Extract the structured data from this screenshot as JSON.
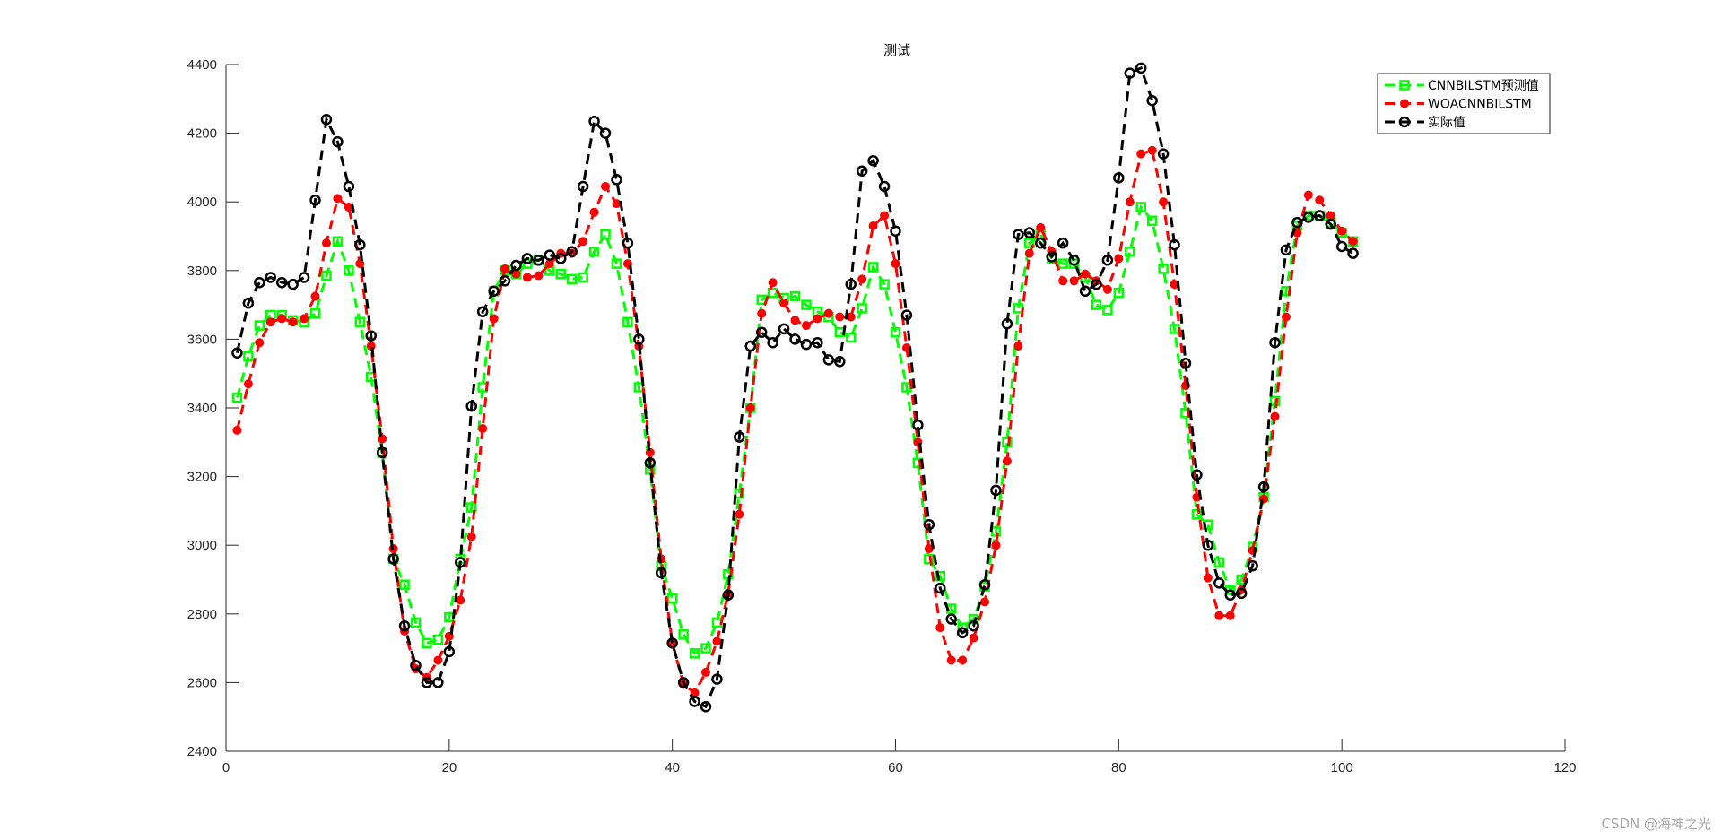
{
  "watermark": "CSDN @海神之光",
  "chart_data": {
    "type": "line",
    "title": "测试",
    "xlabel": "",
    "ylabel": "",
    "xlim": [
      0,
      120
    ],
    "ylim": [
      2400,
      4400
    ],
    "xticks": [
      0,
      20,
      40,
      60,
      80,
      100,
      120
    ],
    "yticks": [
      2400,
      2600,
      2800,
      3000,
      3200,
      3400,
      3600,
      3800,
      4000,
      4200,
      4400
    ],
    "grid": false,
    "legend_position": "top-right",
    "x": [
      1,
      2,
      3,
      4,
      5,
      6,
      7,
      8,
      9,
      10,
      11,
      12,
      13,
      14,
      15,
      16,
      17,
      18,
      19,
      20,
      21,
      22,
      23,
      24,
      25,
      26,
      27,
      28,
      29,
      30,
      31,
      32,
      33,
      34,
      35,
      36,
      37,
      38,
      39,
      40,
      41,
      42,
      43,
      44,
      45,
      46,
      47,
      48,
      49,
      50,
      51,
      52,
      53,
      54,
      55,
      56,
      57,
      58,
      59,
      60,
      61,
      62,
      63,
      64,
      65,
      66,
      67,
      68,
      69,
      70,
      71,
      72,
      73,
      74,
      75,
      76,
      77,
      78,
      79,
      80,
      81,
      82,
      83,
      84,
      85,
      86,
      87,
      88,
      89,
      90,
      91,
      92,
      93,
      94,
      95,
      96,
      97,
      98,
      99,
      100,
      101
    ],
    "series": [
      {
        "name": "CNNBILSTM预测值",
        "color": "#00ff00",
        "marker": "square",
        "values": [
          3430,
          3550,
          3640,
          3670,
          3670,
          3655,
          3650,
          3675,
          3785,
          3885,
          3800,
          3650,
          3490,
          3270,
          2960,
          2885,
          2775,
          2715,
          2725,
          2790,
          2960,
          3110,
          3460,
          3740,
          3800,
          3790,
          3820,
          3830,
          3800,
          3790,
          3775,
          3780,
          3855,
          3905,
          3820,
          3650,
          3460,
          3220,
          2940,
          2845,
          2740,
          2685,
          2700,
          2775,
          2915,
          3150,
          3400,
          3715,
          3735,
          3720,
          3725,
          3700,
          3680,
          3665,
          3620,
          3605,
          3690,
          3810,
          3760,
          3620,
          3460,
          3240,
          2960,
          2910,
          2815,
          2760,
          2785,
          2880,
          3040,
          3300,
          3690,
          3880,
          3905,
          3835,
          3820,
          3820,
          3780,
          3700,
          3685,
          3735,
          3855,
          3985,
          3945,
          3805,
          3630,
          3385,
          3090,
          3060,
          2950,
          2870,
          2900,
          2995,
          3140,
          3420,
          3740,
          3930,
          3960,
          3960,
          3940,
          3910,
          3885
        ]
      },
      {
        "name": "WOACNNBILSTM",
        "color": "#ff0000",
        "marker": "circle-filled",
        "values": [
          3335,
          3470,
          3590,
          3650,
          3660,
          3650,
          3660,
          3725,
          3880,
          4010,
          3985,
          3820,
          3580,
          3310,
          2990,
          2750,
          2640,
          2615,
          2665,
          2735,
          2840,
          3025,
          3340,
          3660,
          3805,
          3790,
          3780,
          3785,
          3820,
          3850,
          3850,
          3885,
          3970,
          4045,
          3995,
          3820,
          3580,
          3270,
          2960,
          2715,
          2595,
          2570,
          2630,
          2720,
          2860,
          3090,
          3400,
          3675,
          3765,
          3705,
          3655,
          3640,
          3660,
          3675,
          3665,
          3665,
          3775,
          3930,
          3960,
          3820,
          3575,
          3300,
          2990,
          2760,
          2665,
          2665,
          2730,
          2835,
          3000,
          3245,
          3580,
          3850,
          3925,
          3855,
          3770,
          3770,
          3790,
          3770,
          3745,
          3835,
          4000,
          4140,
          4150,
          4000,
          3760,
          3465,
          3140,
          2905,
          2795,
          2795,
          2870,
          2985,
          3135,
          3375,
          3665,
          3910,
          4020,
          4005,
          3960,
          3915,
          3885
        ]
      },
      {
        "name": "实际值",
        "color": "#000000",
        "marker": "circle-open",
        "values": [
          3560,
          3705,
          3765,
          3780,
          3765,
          3760,
          3780,
          4005,
          4240,
          4175,
          4045,
          3875,
          3610,
          3270,
          2960,
          2765,
          2650,
          2600,
          2600,
          2690,
          2950,
          3405,
          3680,
          3740,
          3770,
          3815,
          3835,
          3830,
          3845,
          3835,
          3855,
          4045,
          4235,
          4200,
          4065,
          3880,
          3600,
          3240,
          2920,
          2715,
          2600,
          2545,
          2530,
          2610,
          2855,
          3315,
          3580,
          3620,
          3590,
          3630,
          3600,
          3585,
          3590,
          3540,
          3535,
          3760,
          4090,
          4120,
          4045,
          3915,
          3670,
          3350,
          3060,
          2875,
          2785,
          2745,
          2765,
          2885,
          3160,
          3645,
          3905,
          3910,
          3880,
          3840,
          3880,
          3830,
          3740,
          3760,
          3830,
          4070,
          4375,
          4390,
          4295,
          4140,
          3875,
          3530,
          3205,
          3000,
          2890,
          2855,
          2860,
          2940,
          3170,
          3590,
          3860,
          3940,
          3955,
          3960,
          3935,
          3870,
          3850
        ]
      }
    ]
  }
}
